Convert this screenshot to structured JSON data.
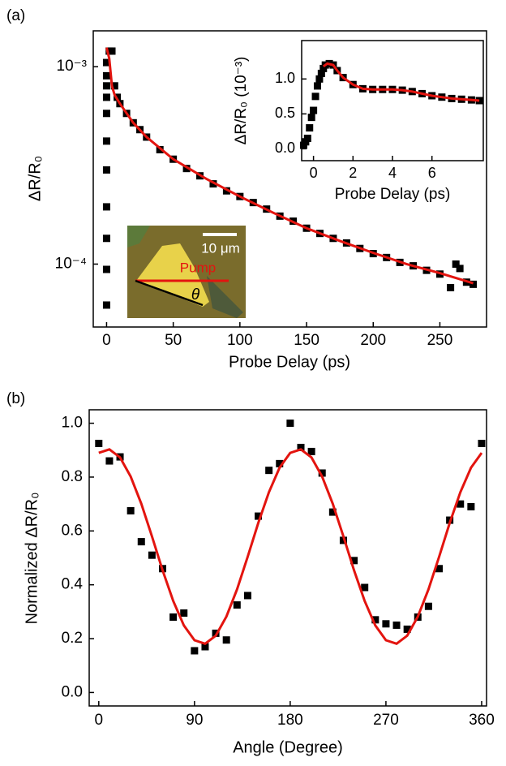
{
  "panel_labels": [
    "(a)",
    "(b)"
  ],
  "photo_inset": {
    "scale": "10 μm",
    "pump": "Pump",
    "angle": "θ"
  },
  "chart_data": [
    {
      "type": "scatter",
      "x_label": "Probe Delay (ps)",
      "y_label": "ΔR/R₀",
      "log_y": true,
      "xlim": [
        -10,
        285
      ],
      "ylim": [
        4.8e-05,
        0.00152
      ],
      "xticks": [
        0,
        50,
        100,
        150,
        200,
        250
      ],
      "yticks": [
        {
          "value": 0.001,
          "label": "10⁻³"
        },
        {
          "value": 0.0001,
          "label": "10⁻⁴"
        }
      ],
      "series": [
        {
          "kind": "scatter",
          "color": "#000000",
          "x": [
            0,
            0,
            0,
            0,
            0,
            0,
            0,
            0,
            0,
            0,
            0,
            2,
            4,
            6,
            8,
            10,
            15,
            20,
            25,
            30,
            40,
            50,
            60,
            70,
            80,
            90,
            100,
            110,
            120,
            130,
            140,
            150,
            160,
            170,
            180,
            190,
            200,
            210,
            220,
            230,
            240,
            250,
            258,
            262,
            265,
            270,
            275
          ],
          "values": [
            6.2e-05,
            9.4e-05,
            0.000135,
            0.000195,
            0.0003,
            0.00042,
            0.00058,
            0.0007,
            0.0008,
            0.0009,
            0.00105,
            0.0012,
            0.0012,
            0.0008,
            0.0007,
            0.00065,
            0.00058,
            0.00052,
            0.00048,
            0.00044,
            0.00038,
            0.00034,
            0.000305,
            0.00028,
            0.000255,
            0.000235,
            0.00022,
            0.000205,
            0.00019,
            0.000175,
            0.000165,
            0.000152,
            0.000143,
            0.000135,
            0.000128,
            0.00012,
            0.000113,
            0.000108,
            0.000102,
            9.8e-05,
            9.3e-05,
            8.9e-05,
            7.6e-05,
            0.0001,
            9.5e-05,
            8.1e-05,
            7.9e-05
          ]
        },
        {
          "kind": "line",
          "color": "#e3140f",
          "x": [
            0,
            2,
            4,
            6,
            10,
            20,
            30,
            50,
            75,
            100,
            125,
            150,
            175,
            200,
            225,
            250,
            275
          ],
          "values": [
            0.00125,
            0.0011,
            0.0008,
            0.00072,
            0.00065,
            0.00052,
            0.00044,
            0.00034,
            0.00027,
            0.00022,
            0.000182,
            0.000152,
            0.000131,
            0.000114,
            0.0001,
            9e-05,
            8e-05
          ]
        }
      ]
    },
    {
      "type": "scatter",
      "x_label": "Probe Delay (ps)",
      "y_label": "ΔR/R₀ (10⁻³)",
      "log_y": false,
      "xlim": [
        -0.6,
        8.6
      ],
      "ylim": [
        -0.17,
        1.55
      ],
      "xticks": [
        0,
        2,
        4,
        6
      ],
      "yticks": [
        {
          "value": 0,
          "label": "0.0"
        },
        0.5,
        {
          "value": 1,
          "label": "1.0"
        }
      ],
      "series": [
        {
          "kind": "scatter",
          "color": "#000000",
          "x": [
            -0.5,
            -0.4,
            -0.3,
            -0.2,
            -0.1,
            0,
            0.1,
            0.2,
            0.3,
            0.4,
            0.5,
            0.6,
            0.8,
            1.0,
            1.2,
            1.5,
            2,
            2.5,
            3,
            3.5,
            4,
            4.5,
            5,
            5.5,
            6,
            6.5,
            7,
            7.5,
            8,
            8.4
          ],
          "values": [
            0.05,
            0.1,
            0.15,
            0.3,
            0.45,
            0.55,
            0.75,
            0.9,
            1.0,
            1.08,
            1.15,
            1.2,
            1.22,
            1.2,
            1.12,
            1.02,
            0.92,
            0.86,
            0.85,
            0.85,
            0.85,
            0.84,
            0.82,
            0.79,
            0.76,
            0.74,
            0.72,
            0.71,
            0.7,
            0.69
          ]
        },
        {
          "kind": "line",
          "color": "#e3140f",
          "x": [
            0.5,
            0.7,
            1.0,
            1.2,
            1.5,
            2,
            2.5,
            3,
            3.5,
            4,
            4.5,
            5,
            5.5,
            6,
            6.5,
            7,
            7.5,
            8,
            8.4
          ],
          "values": [
            1.18,
            1.22,
            1.2,
            1.12,
            1.02,
            0.92,
            0.86,
            0.85,
            0.85,
            0.85,
            0.84,
            0.82,
            0.79,
            0.76,
            0.74,
            0.72,
            0.71,
            0.7,
            0.69
          ]
        }
      ]
    },
    {
      "type": "scatter",
      "x_label": "Angle (Degree)",
      "y_label": "Normalized ΔR/R₀",
      "log_y": false,
      "xlim": [
        -9,
        364.6
      ],
      "ylim": [
        -0.05,
        1.05
      ],
      "xticks": [
        0,
        90,
        180,
        270,
        360
      ],
      "yticks": [
        {
          "value": 0,
          "label": "0.0"
        },
        0.2,
        0.4,
        0.6,
        0.8,
        {
          "value": 1,
          "label": "1.0"
        }
      ],
      "series": [
        {
          "kind": "scatter",
          "color": "#000000",
          "x": [
            0,
            10,
            20,
            30,
            40,
            50,
            60,
            70,
            80,
            90,
            100,
            110,
            120,
            130,
            140,
            150,
            160,
            170,
            180,
            190,
            200,
            210,
            220,
            230,
            240,
            250,
            260,
            270,
            280,
            290,
            300,
            310,
            320,
            330,
            340,
            350,
            360
          ],
          "values": [
            0.925,
            0.86,
            0.875,
            0.675,
            0.56,
            0.51,
            0.46,
            0.28,
            0.295,
            0.155,
            0.17,
            0.22,
            0.195,
            0.325,
            0.36,
            0.655,
            0.825,
            0.85,
            1.0,
            0.91,
            0.895,
            0.815,
            0.67,
            0.565,
            0.49,
            0.39,
            0.27,
            0.255,
            0.25,
            0.235,
            0.28,
            0.32,
            0.46,
            0.64,
            0.7,
            0.69,
            0.925
          ]
        },
        {
          "kind": "line",
          "color": "#e3140f",
          "x": [
            0,
            10,
            20,
            30,
            40,
            50,
            60,
            70,
            80,
            90,
            100,
            110,
            120,
            130,
            140,
            150,
            160,
            170,
            180,
            190,
            200,
            210,
            220,
            230,
            240,
            250,
            260,
            270,
            280,
            290,
            300,
            310,
            320,
            330,
            340,
            350,
            360
          ],
          "values": [
            0.89,
            0.903,
            0.873,
            0.802,
            0.701,
            0.58,
            0.454,
            0.34,
            0.249,
            0.194,
            0.181,
            0.211,
            0.282,
            0.383,
            0.504,
            0.63,
            0.744,
            0.835,
            0.89,
            0.903,
            0.873,
            0.802,
            0.701,
            0.58,
            0.454,
            0.34,
            0.249,
            0.194,
            0.181,
            0.211,
            0.282,
            0.383,
            0.504,
            0.63,
            0.744,
            0.835,
            0.89
          ]
        }
      ]
    }
  ]
}
